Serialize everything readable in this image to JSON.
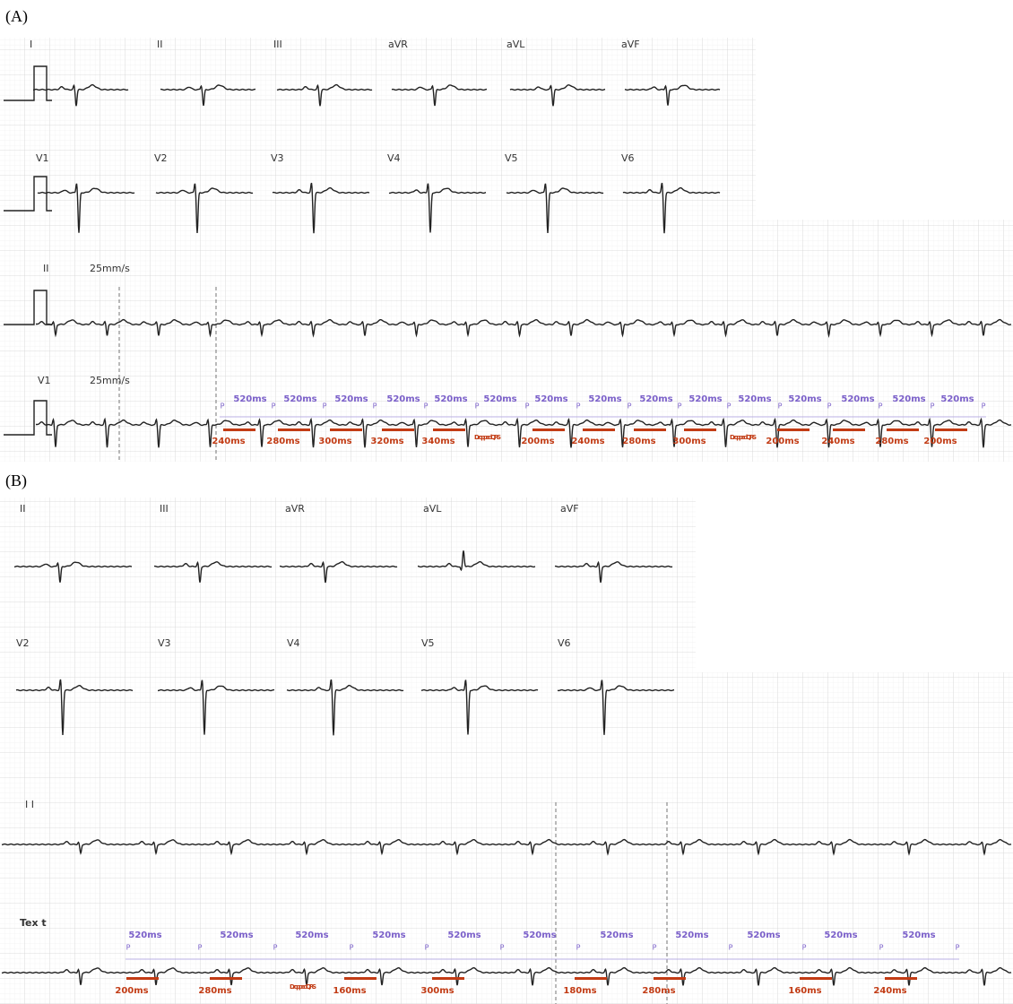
{
  "panel_a": {
    "label": "(A)",
    "leads_row1": [
      "I",
      "II",
      "III",
      "aVR",
      "aVL",
      "aVF"
    ],
    "leads_row2": [
      "V1",
      "V2",
      "V3",
      "V4",
      "V5",
      "V6"
    ],
    "rhythm1": {
      "lead": "II",
      "speed": "25mm/s"
    },
    "rhythm2": {
      "lead": "V1",
      "speed": "25mm/s"
    },
    "pp_intervals": [
      "520ms",
      "520ms",
      "520ms",
      "520ms",
      "520ms",
      "520ms",
      "520ms",
      "520ms",
      "520ms",
      "520ms",
      "520ms",
      "520ms",
      "520ms",
      "520ms",
      "520ms"
    ],
    "p_labels": [
      "P",
      "P",
      "P",
      "P",
      "P",
      "P",
      "P",
      "P",
      "P",
      "P",
      "P",
      "P",
      "P",
      "P",
      "P",
      "P"
    ],
    "pr_labels": [
      "240ms",
      "280ms",
      "300ms",
      "320ms",
      "340ms",
      "Dropped QRS",
      "200ms",
      "240ms",
      "280ms",
      "300ms",
      "Dropped QRS",
      "200ms",
      "240ms",
      "280ms",
      "200ms"
    ]
  },
  "panel_b": {
    "label": "(B)",
    "leads_row1": [
      "II",
      "III",
      "aVR",
      "aVL",
      "aVF"
    ],
    "leads_row2": [
      "V2",
      "V3",
      "V4",
      "V5",
      "V6"
    ],
    "rhythm1": {
      "lead": "I I"
    },
    "rhythm2": {
      "lead": "Tex t"
    },
    "pp_intervals": [
      "520ms",
      "520ms",
      "520ms",
      "520ms",
      "520ms",
      "520ms",
      "520ms",
      "520ms",
      "520ms",
      "520ms",
      "520ms"
    ],
    "p_labels": [
      "P",
      "P",
      "P",
      "P",
      "P",
      "P",
      "P",
      "P",
      "P",
      "P",
      "P",
      "P"
    ],
    "pr_labels": [
      "200ms",
      "280ms",
      "Dropped QRS",
      "160ms",
      "300ms",
      "180ms",
      "280ms",
      "160ms",
      "240ms"
    ]
  }
}
